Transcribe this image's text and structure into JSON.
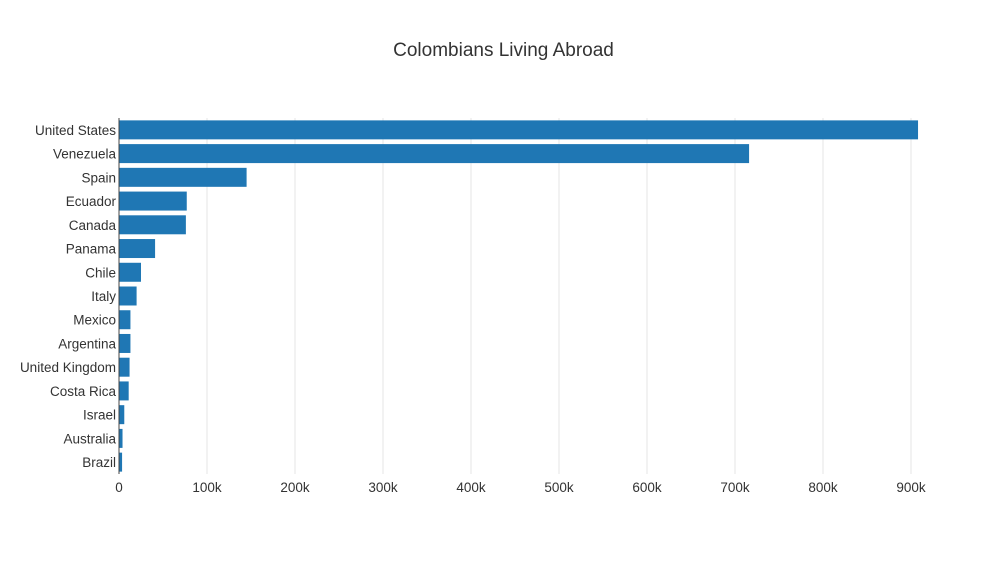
{
  "chart_data": {
    "type": "bar",
    "orientation": "horizontal",
    "title": "Colombians Living Abroad",
    "xlabel": "",
    "ylabel": "",
    "xlim": [
      0,
      920000
    ],
    "x_ticks": [
      0,
      100000,
      200000,
      300000,
      400000,
      500000,
      600000,
      700000,
      800000,
      900000
    ],
    "x_tick_labels": [
      "0",
      "100k",
      "200k",
      "300k",
      "400k",
      "500k",
      "600k",
      "700k",
      "800k",
      "900k"
    ],
    "categories": [
      "United States",
      "Venezuela",
      "Spain",
      "Ecuador",
      "Canada",
      "Panama",
      "Chile",
      "Italy",
      "Mexico",
      "Argentina",
      "United Kingdom",
      "Costa Rica",
      "Israel",
      "Australia",
      "Brazil"
    ],
    "values": [
      908000,
      716000,
      145000,
      77000,
      76000,
      41000,
      25000,
      20000,
      13000,
      13000,
      12000,
      11000,
      6000,
      4000,
      3500
    ],
    "bar_color": "#1f77b4",
    "grid": true
  }
}
